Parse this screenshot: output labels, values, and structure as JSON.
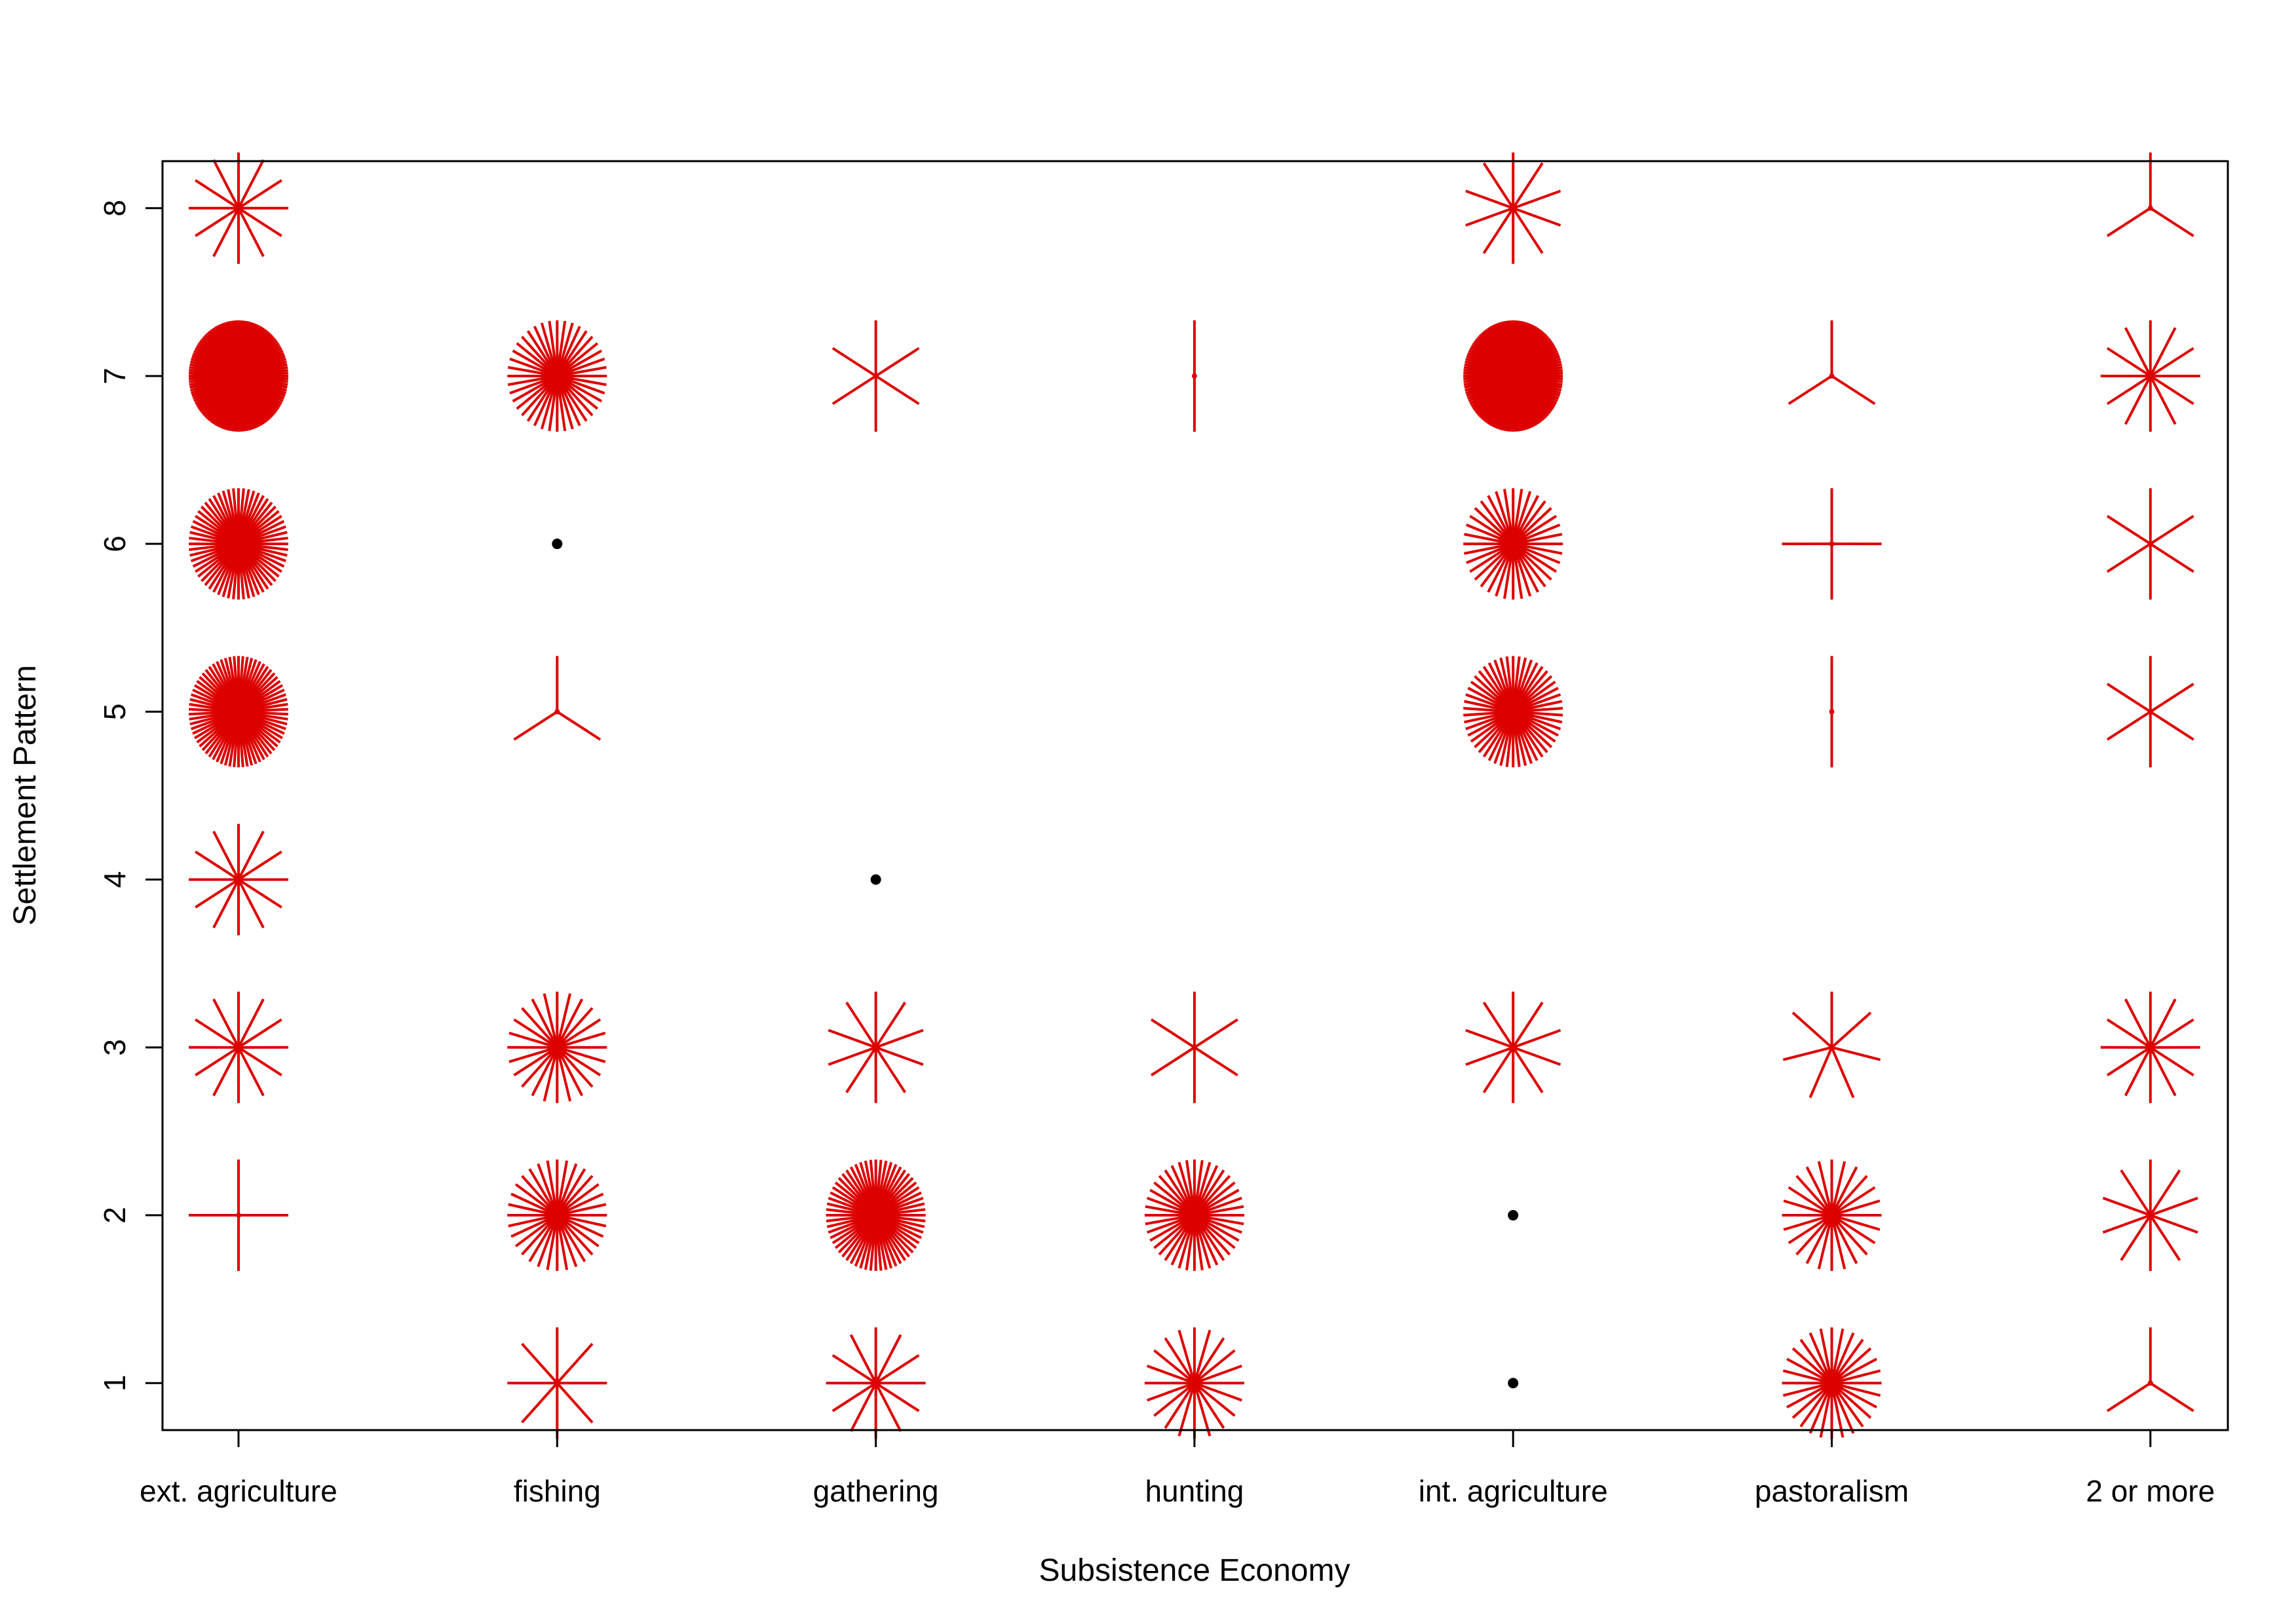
{
  "chart_data": {
    "type": "scatter",
    "subtype": "sunflower",
    "title": "",
    "xlabel": "Subsistence Economy",
    "ylabel": "Settlement Pattern",
    "categories": [
      "ext. agriculture",
      "fishing",
      "gathering",
      "hunting",
      "int. agriculture",
      "pastoralism",
      "2 or more"
    ],
    "y_ticks": [
      1,
      2,
      3,
      4,
      5,
      6,
      7,
      8
    ],
    "ylim": [
      0.72,
      8.28
    ],
    "grid": false,
    "legend": "none",
    "colors": {
      "petal": "#dd0000",
      "point": "#000000",
      "axis": "#000000"
    },
    "points": [
      {
        "category": "ext. agriculture",
        "y": 2,
        "count": 4
      },
      {
        "category": "ext. agriculture",
        "y": 3,
        "count": 12
      },
      {
        "category": "ext. agriculture",
        "y": 4,
        "count": 12
      },
      {
        "category": "ext. agriculture",
        "y": 5,
        "count": 70
      },
      {
        "category": "ext. agriculture",
        "y": 6,
        "count": 60
      },
      {
        "category": "ext. agriculture",
        "y": 7,
        "count": 120
      },
      {
        "category": "ext. agriculture",
        "y": 8,
        "count": 12
      },
      {
        "category": "fishing",
        "y": 1,
        "count": 8
      },
      {
        "category": "fishing",
        "y": 2,
        "count": 32
      },
      {
        "category": "fishing",
        "y": 3,
        "count": 24
      },
      {
        "category": "fishing",
        "y": 5,
        "count": 3
      },
      {
        "category": "fishing",
        "y": 6,
        "count": 1
      },
      {
        "category": "fishing",
        "y": 7,
        "count": 40
      },
      {
        "category": "gathering",
        "y": 1,
        "count": 12
      },
      {
        "category": "gathering",
        "y": 2,
        "count": 60
      },
      {
        "category": "gathering",
        "y": 3,
        "count": 10
      },
      {
        "category": "gathering",
        "y": 4,
        "count": 1
      },
      {
        "category": "gathering",
        "y": 7,
        "count": 6
      },
      {
        "category": "hunting",
        "y": 1,
        "count": 20
      },
      {
        "category": "hunting",
        "y": 2,
        "count": 40
      },
      {
        "category": "hunting",
        "y": 3,
        "count": 6
      },
      {
        "category": "hunting",
        "y": 7,
        "count": 2
      },
      {
        "category": "int. agriculture",
        "y": 1,
        "count": 1
      },
      {
        "category": "int. agriculture",
        "y": 2,
        "count": 1
      },
      {
        "category": "int. agriculture",
        "y": 3,
        "count": 10
      },
      {
        "category": "int. agriculture",
        "y": 5,
        "count": 50
      },
      {
        "category": "int. agriculture",
        "y": 6,
        "count": 36
      },
      {
        "category": "int. agriculture",
        "y": 7,
        "count": 120
      },
      {
        "category": "int. agriculture",
        "y": 8,
        "count": 10
      },
      {
        "category": "pastoralism",
        "y": 1,
        "count": 28
      },
      {
        "category": "pastoralism",
        "y": 2,
        "count": 24
      },
      {
        "category": "pastoralism",
        "y": 3,
        "count": 7
      },
      {
        "category": "pastoralism",
        "y": 5,
        "count": 2
      },
      {
        "category": "pastoralism",
        "y": 6,
        "count": 4
      },
      {
        "category": "pastoralism",
        "y": 7,
        "count": 3
      },
      {
        "category": "2 or more",
        "y": 1,
        "count": 3
      },
      {
        "category": "2 or more",
        "y": 2,
        "count": 10
      },
      {
        "category": "2 or more",
        "y": 3,
        "count": 12
      },
      {
        "category": "2 or more",
        "y": 5,
        "count": 6
      },
      {
        "category": "2 or more",
        "y": 6,
        "count": 6
      },
      {
        "category": "2 or more",
        "y": 7,
        "count": 12
      },
      {
        "category": "2 or more",
        "y": 8,
        "count": 3
      }
    ]
  }
}
